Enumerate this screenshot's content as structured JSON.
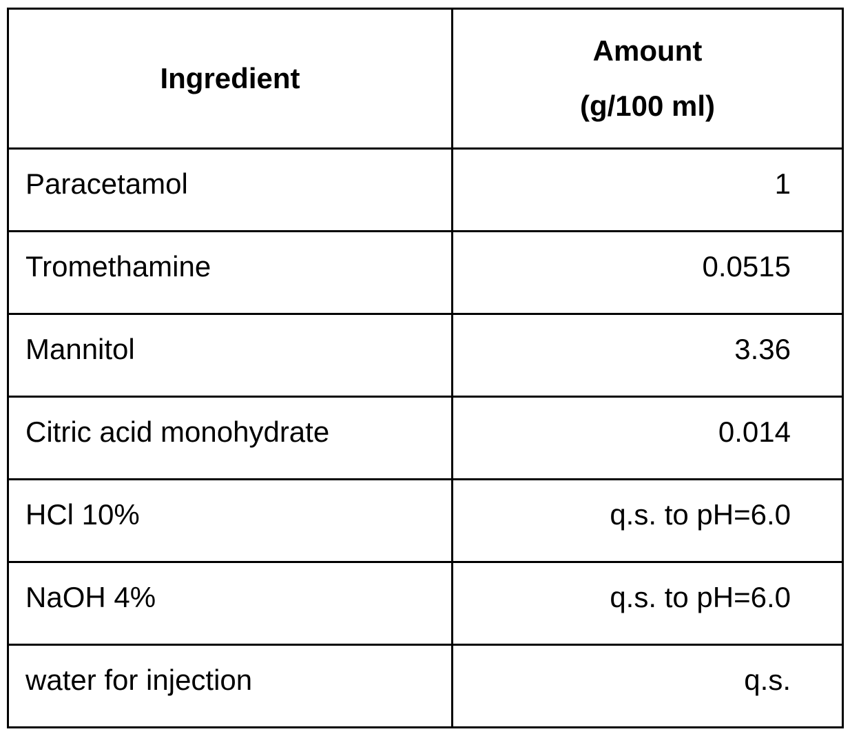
{
  "table": {
    "headers": {
      "ingredient": "Ingredient",
      "amount_line1": "Amount",
      "amount_line2": "(g/100 ml)"
    },
    "rows": [
      {
        "ingredient": "Paracetamol",
        "amount": "1"
      },
      {
        "ingredient": "Tromethamine",
        "amount": "0.0515"
      },
      {
        "ingredient": "Mannitol",
        "amount": "3.36"
      },
      {
        "ingredient": "Citric acid monohydrate",
        "amount": "0.014"
      },
      {
        "ingredient": "HCl 10%",
        "amount": "q.s. to pH=6.0"
      },
      {
        "ingredient": "NaOH 4%",
        "amount": "q.s. to pH=6.0"
      },
      {
        "ingredient": "water for injection",
        "amount": "q.s."
      }
    ]
  }
}
